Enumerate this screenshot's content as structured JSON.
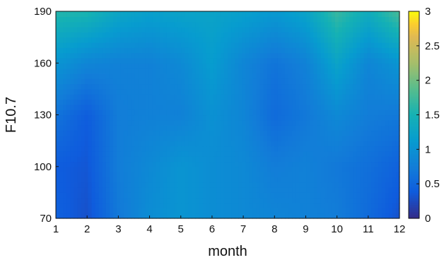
{
  "chart_data": {
    "type": "heatmap",
    "title": "",
    "xlabel": "month",
    "ylabel": "F10.7",
    "xlim": [
      1,
      12
    ],
    "ylim": [
      70,
      190
    ],
    "x_ticks": [
      "1",
      "2",
      "3",
      "4",
      "5",
      "6",
      "7",
      "8",
      "9",
      "10",
      "11",
      "12"
    ],
    "y_ticks": [
      "70",
      "100",
      "130",
      "160",
      "190"
    ],
    "x": [
      1,
      2,
      3,
      4,
      5,
      6,
      7,
      8,
      9,
      10,
      11,
      12
    ],
    "y": [
      70,
      100,
      130,
      160,
      190
    ],
    "z": [
      [
        0.45,
        0.3,
        0.7,
        0.95,
        1.05,
        0.95,
        0.9,
        0.85,
        0.8,
        0.75,
        0.55,
        0.3
      ],
      [
        0.4,
        0.35,
        0.75,
        0.9,
        1.05,
        0.95,
        0.9,
        0.75,
        0.8,
        0.7,
        0.6,
        0.45
      ],
      [
        0.65,
        0.4,
        0.75,
        0.8,
        0.8,
        1.0,
        0.85,
        0.55,
        0.7,
        0.9,
        0.75,
        0.7
      ],
      [
        1.05,
        0.85,
        0.8,
        0.8,
        0.9,
        1.15,
        0.85,
        0.65,
        0.8,
        1.25,
        0.85,
        1.05
      ],
      [
        1.6,
        1.55,
        1.3,
        1.2,
        1.25,
        1.25,
        1.2,
        1.1,
        1.25,
        1.7,
        1.4,
        1.8
      ]
    ],
    "colorbar": {
      "range": [
        0,
        3
      ],
      "ticks": [
        "0",
        "0.5",
        "1",
        "1.5",
        "2",
        "2.5",
        "3"
      ],
      "colormap": "parula"
    }
  }
}
